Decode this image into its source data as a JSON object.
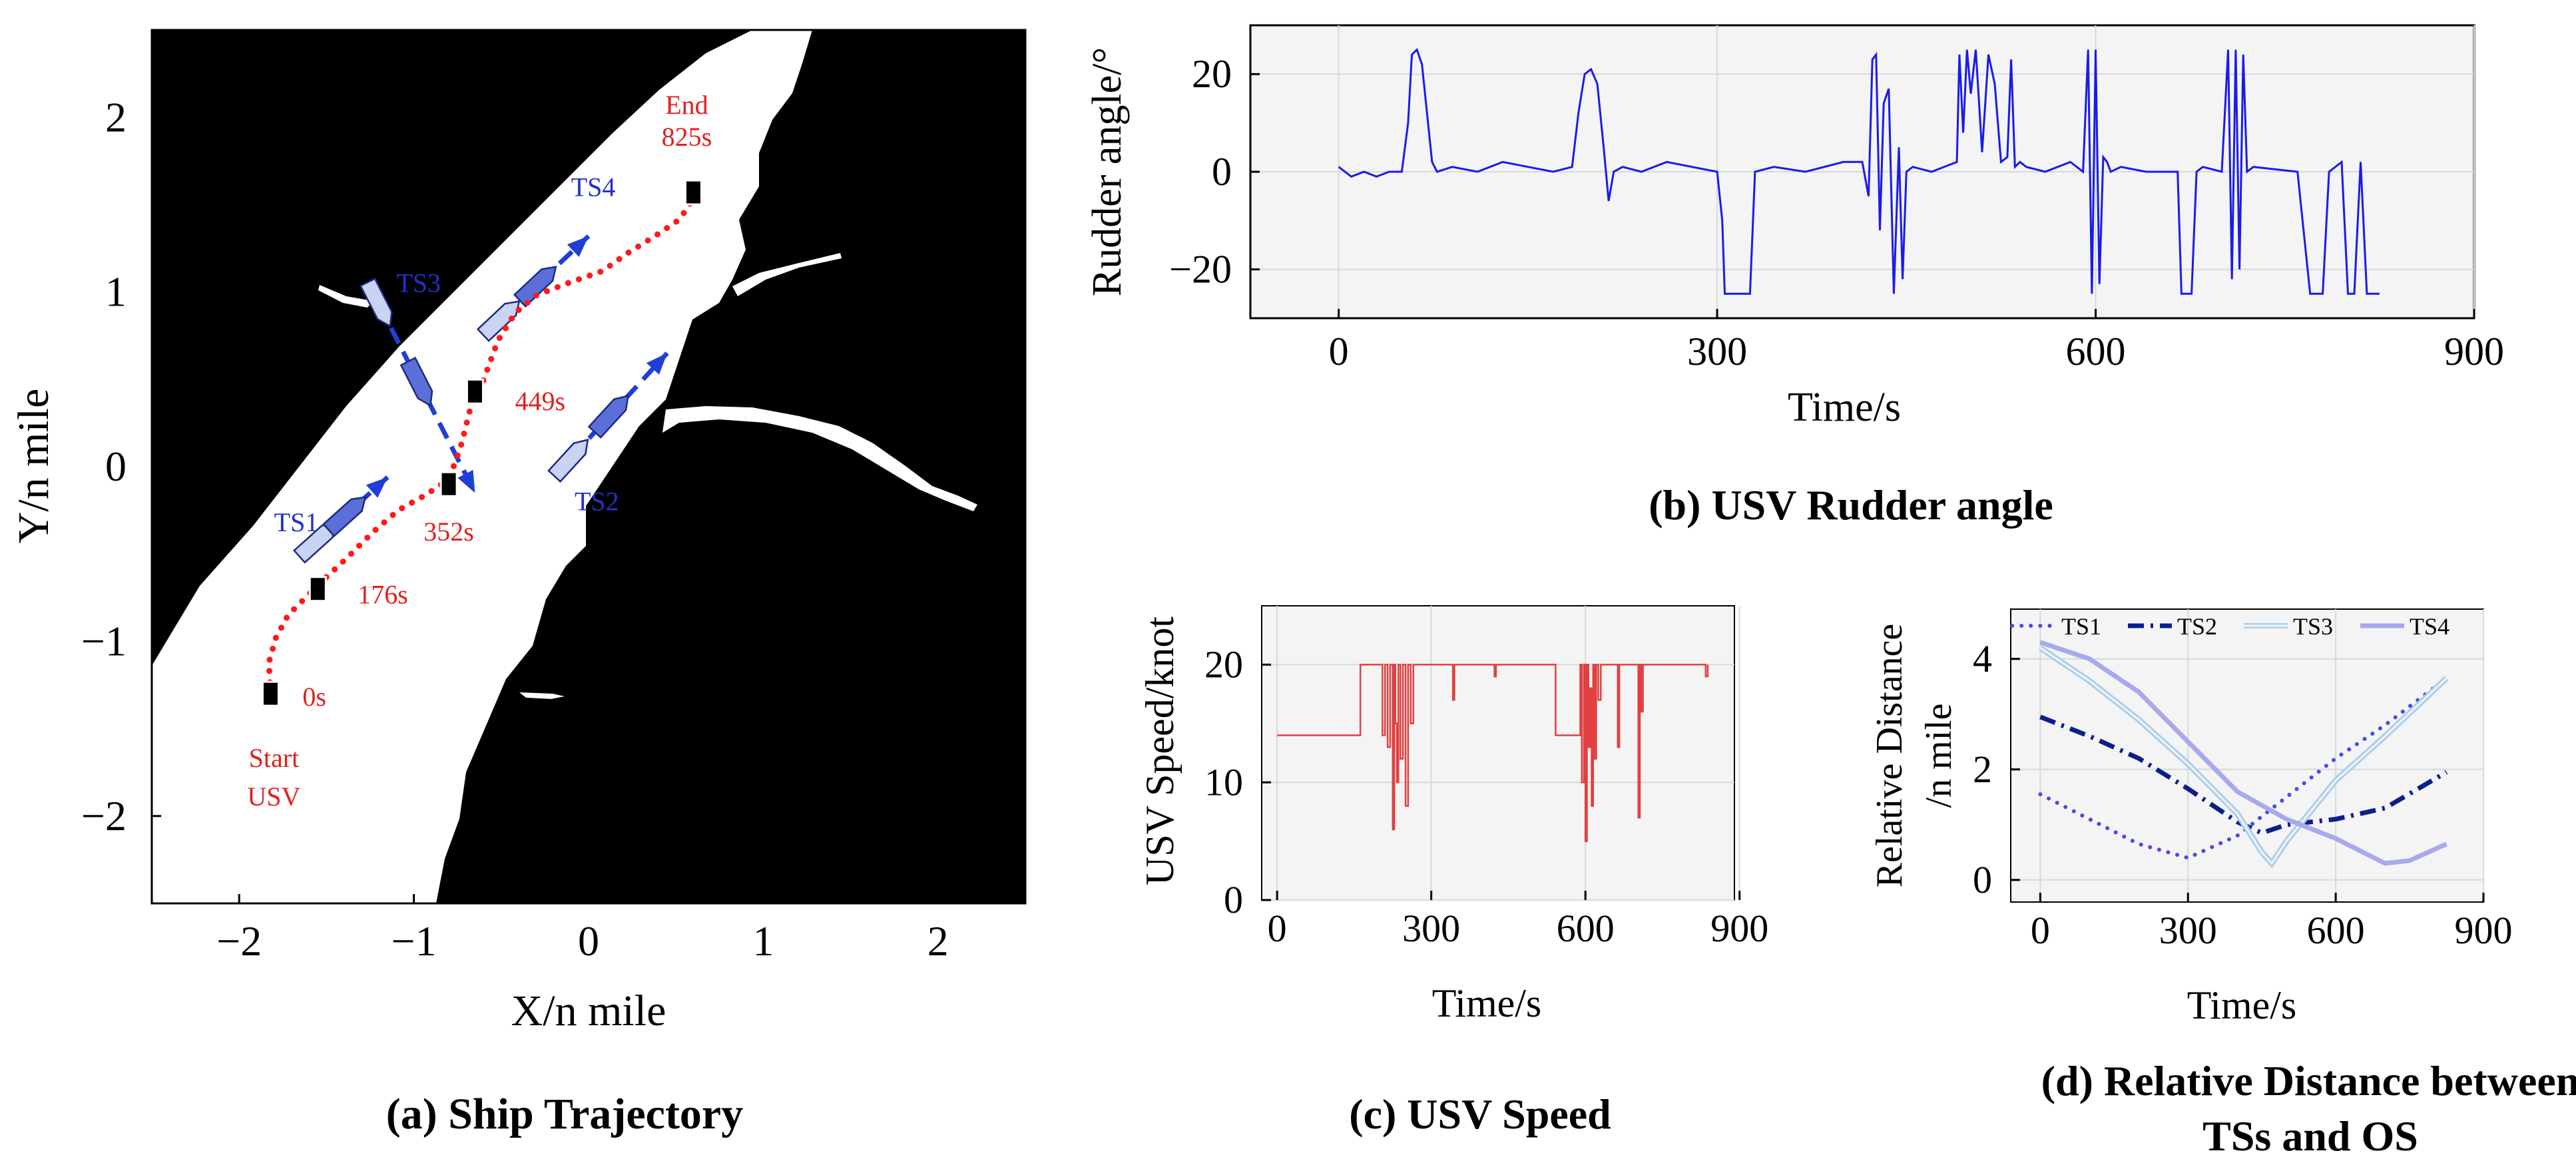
{
  "colors": {
    "land": "#000000",
    "water": "#ffffff",
    "usv_path": "#ff1a1a",
    "ts_track": "#1f3fd6",
    "ship_fill": "#5b6fd8",
    "ship_ghost": "#c9d3f2",
    "usv_label": "#e02020",
    "ts_label": "#2231c9",
    "rudder_line": "#1a1aee",
    "speed_line": "#e04040",
    "ts1": "#4a4ae8",
    "ts2": "#0a1f8c",
    "ts3": "#a9cfee",
    "ts4": "#a8a8ec",
    "panel_bg": "#f4f4f4",
    "grid": "#d8d8d8"
  },
  "chart_data": [
    {
      "id": "a",
      "type": "map",
      "caption": "(a) Ship Trajectory",
      "xlabel": "X/n mile",
      "ylabel": "Y/n mile",
      "xlim": [
        -2.5,
        2.5
      ],
      "ylim": [
        -2.5,
        2.5
      ],
      "xticks": [
        -2,
        -1,
        0,
        1,
        2
      ],
      "yticks": [
        -2,
        -1,
        0,
        1,
        2
      ],
      "xtick_labels": [
        "−2",
        "−1",
        "0",
        "1",
        "2"
      ],
      "ytick_labels": [
        "−2",
        "−1",
        "0",
        "1",
        "2"
      ],
      "usv_path": {
        "x": [
          -1.82,
          -1.83,
          -1.79,
          -1.72,
          -1.62,
          -1.52,
          -1.38,
          -1.24,
          -1.09,
          -0.93,
          -0.84,
          -0.78,
          -0.73,
          -0.68,
          -0.63,
          -0.6,
          -0.52,
          -0.42,
          -0.3,
          -0.12,
          0.08,
          0.22,
          0.38,
          0.5,
          0.57,
          0.6
        ],
        "y": [
          -1.3,
          -1.12,
          -0.98,
          -0.85,
          -0.75,
          -0.65,
          -0.52,
          -0.38,
          -0.25,
          -0.16,
          -0.1,
          -0.02,
          0.12,
          0.32,
          0.42,
          0.5,
          0.72,
          0.88,
          0.98,
          1.05,
          1.12,
          1.22,
          1.32,
          1.4,
          1.48,
          1.56
        ]
      },
      "usv_markers": [
        {
          "label": "0s",
          "x": -1.82,
          "y": -1.3
        },
        {
          "label": "176s",
          "x": -1.55,
          "y": -0.7
        },
        {
          "label": "352s",
          "x": -0.8,
          "y": -0.1
        },
        {
          "label": "449s",
          "x": -0.65,
          "y": 0.43
        },
        {
          "label": "825s",
          "x": 0.6,
          "y": 1.57
        }
      ],
      "point_labels": {
        "start": "Start",
        "usv": "USV",
        "end": "End"
      },
      "target_ships": [
        {
          "name": "TS1",
          "label_x": -1.8,
          "label_y": -0.37,
          "x0": -1.55,
          "y0": -0.42,
          "x1": -1.15,
          "y1": -0.06
        },
        {
          "name": "TS2",
          "label_x": -0.08,
          "label_y": -0.25,
          "x0": -0.1,
          "y0": 0.05,
          "x1": 0.45,
          "y1": 0.65
        },
        {
          "name": "TS3",
          "label_x": -1.1,
          "label_y": 1.0,
          "x0": -1.2,
          "y0": 0.93,
          "x1": -0.65,
          "y1": -0.15
        },
        {
          "name": "TS4",
          "label_x": -0.1,
          "label_y": 1.55,
          "x0": -0.5,
          "y0": 0.85,
          "x1": 0.0,
          "y1": 1.32
        }
      ]
    },
    {
      "id": "b",
      "type": "line",
      "caption": "(b) USV Rudder angle",
      "xlabel": "Time/s",
      "ylabel": "Rudder angle/°",
      "xlim": [
        -70,
        900
      ],
      "ylim": [
        -30,
        30
      ],
      "xticks": [
        0,
        300,
        600,
        900
      ],
      "yticks": [
        -20,
        0,
        20
      ],
      "xtick_labels": [
        "0",
        "300",
        "600",
        "900"
      ],
      "ytick_labels": [
        "−20",
        "0",
        "20"
      ],
      "series": [
        {
          "name": "Rudder angle",
          "x": [
            0,
            10,
            20,
            30,
            40,
            50,
            55,
            58,
            62,
            66,
            70,
            74,
            78,
            90,
            110,
            130,
            150,
            170,
            185,
            190,
            195,
            200,
            205,
            210,
            214,
            218,
            225,
            240,
            260,
            280,
            300,
            304,
            306,
            312,
            318,
            322,
            326,
            330,
            345,
            370,
            400,
            415,
            420,
            423,
            426,
            429,
            432,
            436,
            440,
            444,
            447,
            450,
            455,
            470,
            490,
            492,
            495,
            498,
            501,
            505,
            510,
            515,
            520,
            525,
            530,
            533,
            536,
            540,
            545,
            560,
            580,
            590,
            594,
            597,
            600,
            603,
            606,
            609,
            612,
            620,
            640,
            665,
            668,
            671,
            676,
            680,
            685,
            700,
            705,
            708,
            711,
            714,
            717,
            720,
            725,
            760,
            770,
            775,
            780,
            785,
            790,
            795,
            800,
            805,
            810,
            815,
            820,
            825
          ],
          "y": [
            1,
            -1,
            0,
            -1,
            0,
            0,
            10,
            24,
            25,
            22,
            12,
            2,
            0,
            1,
            0,
            2,
            1,
            0,
            1,
            12,
            20,
            21,
            18,
            5,
            -6,
            0,
            1,
            0,
            2,
            1,
            0,
            -10,
            -25,
            -25,
            -25,
            -25,
            -25,
            0,
            1,
            0,
            2,
            2,
            -5,
            23,
            24,
            -12,
            14,
            17,
            -25,
            5,
            -22,
            0,
            1,
            0,
            2,
            24,
            8,
            25,
            16,
            25,
            4,
            24,
            18,
            2,
            3,
            23,
            1,
            2,
            1,
            0,
            2,
            0,
            25,
            -25,
            25,
            -23,
            3,
            2,
            0,
            1,
            0,
            0,
            -25,
            -25,
            -25,
            0,
            1,
            0,
            25,
            -22,
            25,
            -20,
            24,
            0,
            1,
            0,
            -25,
            -25,
            -25,
            0,
            1,
            2,
            -25,
            -25,
            2,
            -25,
            -25,
            -25
          ],
          "color": "#1a1aee"
        }
      ]
    },
    {
      "id": "c",
      "type": "line",
      "caption": "(c) USV Speed",
      "xlabel": "Time/s",
      "ylabel": "USV Speed/knot",
      "xlim": [
        -30,
        890
      ],
      "ylim": [
        0,
        25
      ],
      "xticks": [
        0,
        300,
        600,
        900
      ],
      "yticks": [
        0,
        10,
        20
      ],
      "xtick_labels": [
        "0",
        "300",
        "600",
        "900"
      ],
      "ytick_labels": [
        "0",
        "10",
        "20"
      ],
      "series": [
        {
          "name": "Speed",
          "x": [
            0,
            160,
            162,
            200,
            205,
            210,
            215,
            220,
            225,
            228,
            230,
            233,
            236,
            240,
            245,
            250,
            255,
            260,
            265,
            270,
            275,
            280,
            285,
            290,
            300,
            340,
            342,
            345,
            350,
            420,
            423,
            426,
            430,
            540,
            542,
            585,
            590,
            593,
            597,
            600,
            603,
            606,
            609,
            612,
            615,
            618,
            621,
            625,
            630,
            640,
            650,
            660,
            663,
            666,
            670,
            700,
            703,
            706,
            709,
            712,
            715,
            760,
            800,
            830,
            834,
            838
          ],
          "y": [
            14,
            14,
            20,
            20,
            14,
            20,
            13,
            20,
            6,
            20,
            15,
            10,
            20,
            12,
            20,
            8,
            20,
            15,
            20,
            20,
            20,
            20,
            20,
            20,
            20,
            20,
            17,
            20,
            20,
            20,
            19,
            20,
            20,
            20,
            14,
            14,
            20,
            10,
            20,
            5,
            20,
            13,
            18,
            8,
            20,
            12,
            20,
            17,
            20,
            20,
            20,
            20,
            13,
            20,
            20,
            20,
            7,
            20,
            16,
            20,
            20,
            20,
            20,
            20,
            19,
            20
          ],
          "color": "#e04040"
        }
      ]
    },
    {
      "id": "d",
      "type": "line",
      "caption_line1": "(d) Relative Distance between",
      "caption_line2": "TSs and OS",
      "xlabel": "Time/s",
      "ylabel_line1": "Relative Distance",
      "ylabel_line2": "/n mile",
      "xlim": [
        -60,
        900
      ],
      "ylim": [
        -0.4,
        4.9
      ],
      "xticks": [
        0,
        300,
        600,
        900
      ],
      "yticks": [
        0,
        2,
        4
      ],
      "xtick_labels": [
        "0",
        "300",
        "600",
        "900"
      ],
      "ytick_labels": [
        "0",
        "2",
        "4"
      ],
      "legend_position": "top",
      "series": [
        {
          "name": "TS1",
          "style": "dotted",
          "color": "#4a4ae8",
          "x": [
            0,
            100,
            200,
            300,
            400,
            500,
            600,
            700,
            825
          ],
          "y": [
            1.55,
            1.1,
            0.65,
            0.4,
            0.8,
            1.5,
            2.2,
            2.8,
            3.65
          ]
        },
        {
          "name": "TS2",
          "style": "dashdot",
          "color": "#0a1f8c",
          "x": [
            0,
            100,
            200,
            300,
            400,
            450,
            500,
            600,
            700,
            825
          ],
          "y": [
            2.95,
            2.6,
            2.2,
            1.65,
            1.05,
            0.85,
            1.0,
            1.1,
            1.3,
            1.95
          ]
        },
        {
          "name": "TS3",
          "style": "double",
          "color": "#a9cfee",
          "x": [
            0,
            100,
            200,
            300,
            400,
            450,
            470,
            500,
            600,
            700,
            825
          ],
          "y": [
            4.2,
            3.6,
            2.9,
            2.1,
            1.2,
            0.5,
            0.3,
            0.7,
            1.8,
            2.6,
            3.65
          ]
        },
        {
          "name": "TS4",
          "style": "solid",
          "color": "#a8a8ec",
          "x": [
            0,
            100,
            200,
            300,
            400,
            500,
            600,
            700,
            750,
            825
          ],
          "y": [
            4.3,
            4.0,
            3.4,
            2.5,
            1.6,
            1.1,
            0.75,
            0.3,
            0.35,
            0.65
          ]
        }
      ]
    }
  ]
}
